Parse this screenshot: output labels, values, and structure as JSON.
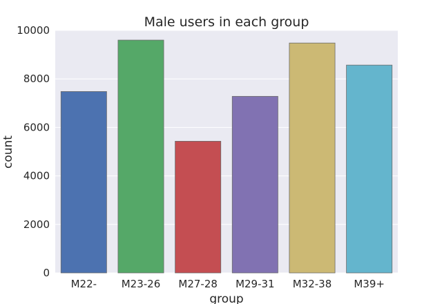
{
  "chart_data": {
    "type": "bar",
    "title": "Male users in each group",
    "xlabel": "group",
    "ylabel": "count",
    "categories": [
      "M22-",
      "M23-26",
      "M27-28",
      "M29-31",
      "M32-38",
      "M39+"
    ],
    "values": [
      7480,
      9600,
      5430,
      7280,
      9480,
      8570
    ],
    "ylim": [
      0,
      10000
    ],
    "yticks": [
      0,
      2000,
      4000,
      6000,
      8000,
      10000
    ],
    "grid": true,
    "colors": [
      "#4c72b0",
      "#55a868",
      "#c44e52",
      "#8172b2",
      "#ccb974",
      "#64b5cd"
    ]
  }
}
